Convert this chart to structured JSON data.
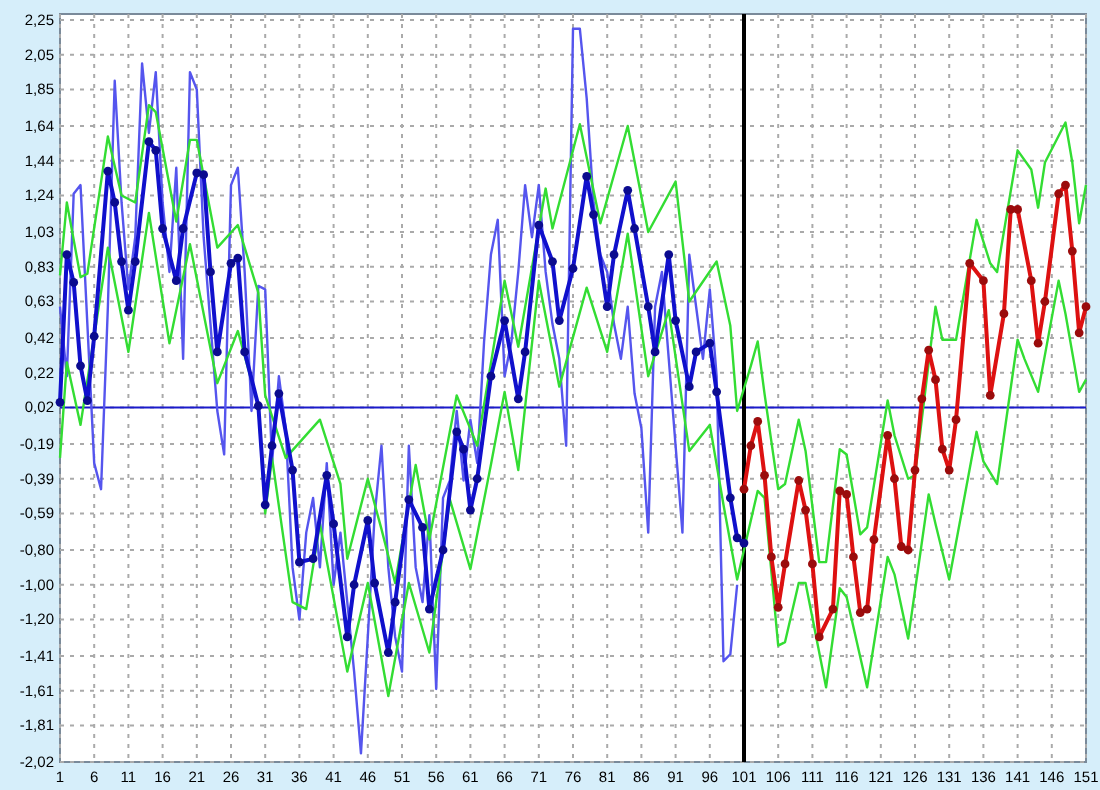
{
  "chart_data": {
    "type": "line",
    "xlim": [
      1,
      151
    ],
    "ylim": [
      -2.02,
      2.25
    ],
    "xticks": [
      1,
      6,
      11,
      16,
      21,
      26,
      31,
      36,
      41,
      46,
      51,
      56,
      61,
      66,
      71,
      76,
      81,
      86,
      91,
      96,
      101,
      106,
      111,
      116,
      121,
      126,
      131,
      136,
      141,
      146,
      151
    ],
    "yticks": [
      {
        "value": 2.25,
        "label": "2,25"
      },
      {
        "value": 2.05,
        "label": "2,05"
      },
      {
        "value": 1.85,
        "label": "1,85"
      },
      {
        "value": 1.64,
        "label": "1,64"
      },
      {
        "value": 1.44,
        "label": "1,44"
      },
      {
        "value": 1.24,
        "label": "1,24"
      },
      {
        "value": 1.03,
        "label": "1,03"
      },
      {
        "value": 0.83,
        "label": "0,83"
      },
      {
        "value": 0.63,
        "label": "0,63"
      },
      {
        "value": 0.42,
        "label": "0,42"
      },
      {
        "value": 0.22,
        "label": "0,22"
      },
      {
        "value": 0.02,
        "label": "0,02"
      },
      {
        "value": -0.19,
        "label": "-0,19"
      },
      {
        "value": -0.39,
        "label": "-0,39"
      },
      {
        "value": -0.59,
        "label": "-0,59"
      },
      {
        "value": -0.8,
        "label": "-0,80"
      },
      {
        "value": -1.0,
        "label": "-1,00"
      },
      {
        "value": -1.2,
        "label": "-1,20"
      },
      {
        "value": -1.41,
        "label": "-1,41"
      },
      {
        "value": -1.61,
        "label": "-1,61"
      },
      {
        "value": -1.81,
        "label": "-1,81"
      },
      {
        "value": -2.02,
        "label": "-2,02"
      }
    ],
    "grid": true,
    "ref_lines": [
      {
        "axis": "y",
        "value": 0.02,
        "color": "#1a1acc"
      },
      {
        "axis": "x",
        "value": 101,
        "color": "#000000"
      }
    ],
    "series": [
      {
        "color": "#5555ee",
        "marker": "none",
        "x": [
          1,
          2,
          3,
          4,
          5,
          6,
          7,
          8,
          9,
          10,
          11,
          12,
          13,
          14,
          15,
          16,
          17,
          18,
          19,
          20,
          21,
          22,
          23,
          24,
          25,
          26,
          27,
          28,
          29,
          30,
          31,
          32,
          33,
          34,
          35,
          36,
          37,
          38,
          39,
          40,
          41,
          42,
          43,
          44,
          45,
          46,
          47,
          48,
          49,
          50,
          51,
          52,
          53,
          54,
          55,
          56,
          57,
          58,
          59,
          60,
          61,
          62,
          63,
          64,
          65,
          66,
          67,
          68,
          69,
          70,
          71,
          72,
          73,
          74,
          75,
          76,
          77,
          78,
          79,
          80,
          81,
          82,
          83,
          84,
          85,
          86,
          87,
          88,
          89,
          90,
          91,
          92,
          93,
          94,
          95,
          96,
          97,
          98,
          99,
          100
        ],
        "values": [
          0.6,
          0.2,
          1.25,
          1.3,
          0.5,
          -0.3,
          -0.45,
          0.6,
          1.9,
          1.2,
          0.7,
          1.0,
          2.0,
          1.6,
          1.95,
          1.2,
          0.8,
          1.4,
          0.3,
          1.95,
          1.85,
          1.0,
          0.5,
          0.0,
          -0.25,
          1.3,
          1.4,
          0.8,
          0.0,
          0.72,
          0.7,
          -0.3,
          0.2,
          -0.1,
          -0.9,
          -1.2,
          -0.7,
          -0.5,
          -0.9,
          -0.3,
          -1.0,
          -0.7,
          -1.1,
          -1.5,
          -1.97,
          -1.3,
          -0.6,
          -0.2,
          -0.9,
          -1.3,
          -1.5,
          -0.2,
          -0.9,
          -1.1,
          -0.6,
          -1.6,
          -0.5,
          -0.4,
          0.0,
          -0.4,
          -0.05,
          -0.3,
          0.4,
          0.9,
          1.1,
          0.2,
          0.4,
          0.8,
          1.3,
          1.0,
          1.3,
          0.8,
          0.5,
          0.3,
          -0.2,
          2.2,
          2.2,
          1.8,
          1.2,
          0.9,
          0.8,
          0.5,
          0.3,
          0.6,
          0.1,
          -0.1,
          -0.7,
          0.6,
          0.8,
          0.3,
          -0.2,
          -0.7,
          0.9,
          0.6,
          0.3,
          0.7,
          0.2,
          -1.44,
          -1.4,
          -1.0
        ]
      },
      {
        "color": "#33dd33",
        "marker": "none",
        "x": [
          1,
          2,
          4,
          5,
          8,
          10,
          12,
          14,
          15,
          18,
          20,
          21,
          24,
          27,
          30,
          31,
          34,
          39,
          42,
          43,
          46,
          48,
          50,
          53,
          55,
          59,
          62,
          66,
          68,
          72,
          73,
          77,
          80,
          84,
          87,
          91,
          93,
          97,
          99,
          100,
          102,
          103,
          104,
          106,
          107,
          109,
          110,
          112,
          113,
          115,
          116,
          118,
          119,
          122,
          123,
          125,
          126,
          129,
          130,
          132,
          135,
          137,
          138,
          141,
          143,
          144,
          145,
          148,
          149,
          150,
          151
        ],
        "values": [
          0.78,
          1.2,
          0.77,
          0.79,
          1.58,
          1.24,
          1.2,
          1.76,
          1.72,
          1.09,
          1.56,
          1.56,
          0.94,
          1.07,
          0.68,
          0.09,
          -0.27,
          -0.05,
          -0.42,
          -0.85,
          -0.39,
          -0.68,
          -0.99,
          -0.31,
          -0.74,
          0.09,
          -0.2,
          0.75,
          0.37,
          1.28,
          1.05,
          1.65,
          1.08,
          1.64,
          1.03,
          1.32,
          0.63,
          0.86,
          0.49,
          0.0,
          0.26,
          0.4,
          0.1,
          -0.45,
          -0.42,
          -0.05,
          -0.23,
          -0.87,
          -0.87,
          -0.22,
          -0.25,
          -0.71,
          -0.67,
          0.06,
          -0.14,
          -0.39,
          -0.37,
          0.6,
          0.41,
          0.41,
          1.1,
          0.85,
          0.8,
          1.5,
          1.39,
          1.17,
          1.43,
          1.66,
          1.43,
          1.08,
          1.3
        ]
      },
      {
        "color": "#33dd33",
        "marker": "none",
        "x": [
          1,
          2,
          4,
          8,
          11,
          14,
          17,
          20,
          24,
          27,
          30,
          31,
          32,
          35,
          37,
          39,
          43,
          46,
          49,
          52,
          55,
          58,
          61,
          64,
          66,
          68,
          71,
          74,
          78,
          81,
          84,
          87,
          90,
          93,
          96,
          98,
          100,
          103,
          104,
          106,
          107,
          109,
          110,
          113,
          115,
          116,
          119,
          122,
          123,
          125,
          128,
          129,
          131,
          135,
          136,
          138,
          141,
          142,
          144,
          147,
          148,
          150,
          151
        ],
        "values": [
          -0.27,
          0.28,
          -0.08,
          0.94,
          0.34,
          1.14,
          0.39,
          0.96,
          0.16,
          0.46,
          0.03,
          -0.59,
          -0.27,
          -1.1,
          -1.14,
          -0.65,
          -1.5,
          -0.99,
          -1.64,
          -0.99,
          -1.39,
          -0.51,
          -0.91,
          -0.31,
          0.11,
          -0.34,
          0.75,
          0.14,
          0.71,
          0.34,
          1.02,
          0.2,
          0.58,
          -0.23,
          -0.08,
          -0.54,
          -0.97,
          -0.46,
          -0.5,
          -1.35,
          -1.33,
          -0.99,
          -0.99,
          -1.59,
          -1.02,
          -1.07,
          -1.59,
          -0.84,
          -0.94,
          -1.31,
          -0.48,
          -0.65,
          -0.97,
          -0.12,
          -0.29,
          -0.42,
          0.41,
          0.3,
          0.11,
          0.75,
          0.56,
          0.11,
          0.18
        ]
      },
      {
        "color": "#1010cc",
        "marker": "circle",
        "x": [
          1,
          2,
          3,
          4,
          5,
          6,
          8,
          9,
          10,
          11,
          12,
          14,
          15,
          16,
          18,
          19,
          21,
          22,
          23,
          24,
          26,
          27,
          28,
          30,
          31,
          32,
          33,
          35,
          36,
          38,
          40,
          41,
          43,
          44,
          46,
          47,
          49,
          50,
          52,
          54,
          55,
          57,
          59,
          60,
          61,
          62,
          64,
          66,
          68,
          69,
          71,
          73,
          74,
          76,
          78,
          79,
          81,
          82,
          84,
          85,
          87,
          88,
          90,
          91,
          93,
          94,
          96,
          97,
          99,
          100,
          101
        ],
        "values": [
          0.05,
          0.9,
          0.74,
          0.26,
          0.06,
          0.43,
          1.38,
          1.2,
          0.86,
          0.58,
          0.86,
          1.55,
          1.5,
          1.05,
          0.75,
          1.05,
          1.37,
          1.36,
          0.8,
          0.34,
          0.85,
          0.88,
          0.34,
          0.03,
          -0.54,
          -0.2,
          0.1,
          -0.34,
          -0.87,
          -0.85,
          -0.37,
          -0.65,
          -1.3,
          -1.0,
          -0.63,
          -0.99,
          -1.39,
          -1.1,
          -0.51,
          -0.67,
          -1.14,
          -0.8,
          -0.12,
          -0.22,
          -0.57,
          -0.39,
          0.2,
          0.52,
          0.07,
          0.34,
          1.07,
          0.86,
          0.52,
          0.82,
          1.35,
          1.13,
          0.6,
          0.9,
          1.27,
          1.05,
          0.6,
          0.34,
          0.9,
          0.52,
          0.14,
          0.34,
          0.39,
          0.11,
          -0.5,
          -0.73,
          -0.76
        ]
      },
      {
        "color": "#dd1111",
        "marker": "circle",
        "x": [
          101,
          102,
          103,
          104,
          105,
          106,
          107,
          109,
          110,
          111,
          112,
          114,
          115,
          116,
          117,
          118,
          119,
          120,
          122,
          123,
          124,
          125,
          126,
          127,
          128,
          129,
          130,
          131,
          132,
          134,
          136,
          137,
          139,
          140,
          141,
          143,
          144,
          145,
          147,
          148,
          149,
          150,
          151
        ],
        "values": [
          -0.45,
          -0.2,
          -0.06,
          -0.37,
          -0.84,
          -1.13,
          -0.88,
          -0.4,
          -0.57,
          -0.88,
          -1.3,
          -1.14,
          -0.46,
          -0.48,
          -0.84,
          -1.16,
          -1.14,
          -0.74,
          -0.14,
          -0.39,
          -0.78,
          -0.8,
          -0.34,
          0.07,
          0.35,
          0.18,
          -0.22,
          -0.34,
          -0.05,
          0.85,
          0.75,
          0.09,
          0.56,
          1.16,
          1.16,
          0.75,
          0.39,
          0.63,
          1.25,
          1.3,
          0.92,
          0.45,
          0.6
        ]
      }
    ]
  }
}
